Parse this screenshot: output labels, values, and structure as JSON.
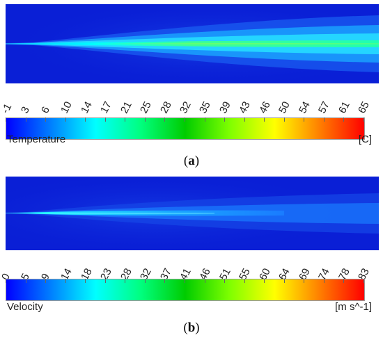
{
  "colors": {
    "background": "#0a1fd6",
    "scale": [
      "#0000ff",
      "#0080ff",
      "#00ffff",
      "#00ff80",
      "#00cc00",
      "#80ff00",
      "#ffff00",
      "#ff8000",
      "#ff0000"
    ]
  },
  "panel_a": {
    "quantity": "Temperature",
    "unit": "[C]",
    "caption_open": "(",
    "caption_letter": "a",
    "caption_close": ")",
    "tick_labels": [
      "-1",
      "3",
      "6",
      "10",
      "14",
      "17",
      "21",
      "25",
      "28",
      "32",
      "35",
      "39",
      "43",
      "46",
      "50",
      "54",
      "57",
      "61",
      "65"
    ],
    "range": [
      -1,
      65
    ]
  },
  "panel_b": {
    "quantity": "Velocity",
    "unit": "[m s^-1]",
    "caption_open": "(",
    "caption_letter": "b",
    "caption_close": ")",
    "tick_labels": [
      "0",
      "5",
      "9",
      "14",
      "18",
      "23",
      "28",
      "32",
      "37",
      "41",
      "46",
      "51",
      "55",
      "60",
      "64",
      "69",
      "74",
      "78",
      "83"
    ],
    "range": [
      0,
      83
    ]
  }
}
